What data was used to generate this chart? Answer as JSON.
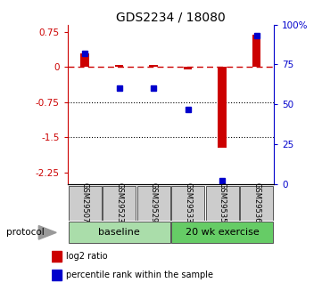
{
  "title": "GDS2234 / 18080",
  "samples": [
    "GSM29507",
    "GSM29523",
    "GSM29529",
    "GSM29533",
    "GSM29535",
    "GSM29536"
  ],
  "log2_ratio": [
    0.28,
    0.04,
    0.04,
    -0.05,
    -1.72,
    0.68
  ],
  "percentile_rank": [
    82,
    60,
    60,
    47,
    2,
    93
  ],
  "ylim_left": [
    -2.5,
    0.9
  ],
  "ylim_right": [
    0,
    100
  ],
  "yticks_left": [
    0.75,
    0,
    -0.75,
    -1.5,
    -2.25
  ],
  "yticks_right": [
    100,
    75,
    50,
    25,
    0
  ],
  "hlines": [
    -0.75,
    -1.5
  ],
  "red_color": "#cc0000",
  "blue_color": "#0000cc",
  "group_colors": [
    "#aaddaa",
    "#66cc66"
  ],
  "group_labels": [
    "baseline",
    "20 wk exercise"
  ],
  "group_ranges": [
    [
      0,
      2
    ],
    [
      3,
      5
    ]
  ],
  "legend_labels": [
    "log2 ratio",
    "percentile rank within the sample"
  ],
  "protocol_label": "protocol",
  "sample_box_color": "#cccccc",
  "background_color": "#ffffff"
}
